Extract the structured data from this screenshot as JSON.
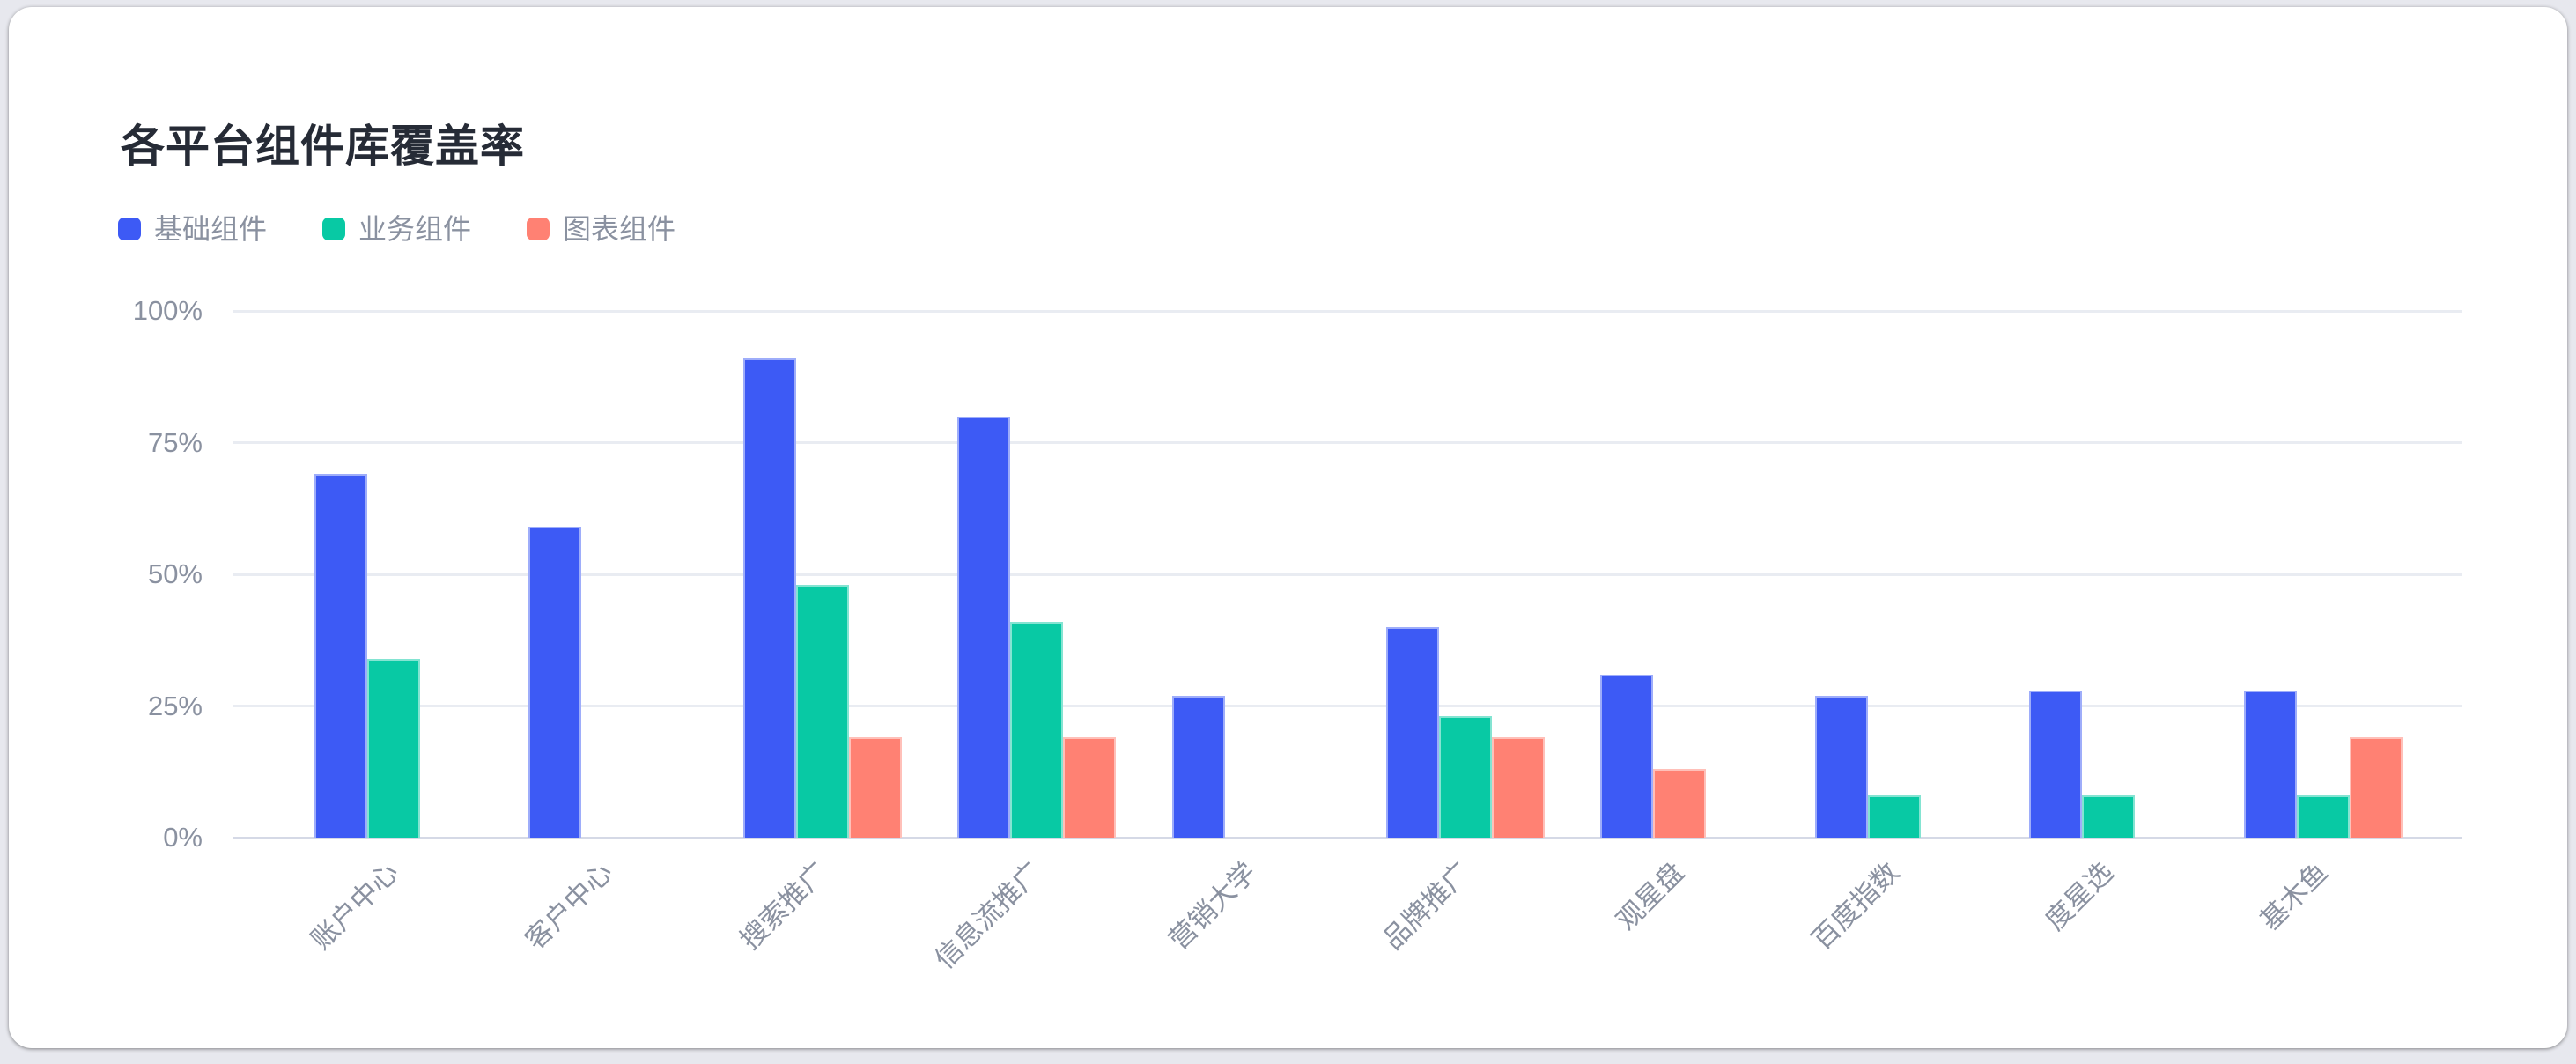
{
  "chart_data": {
    "type": "bar",
    "title": "各平台组件库覆盖率",
    "categories": [
      "账户中心",
      "客户中心",
      "搜索推广",
      "信息流推广",
      "营销大学",
      "品牌推广",
      "观星盘",
      "百度指数",
      "度星选",
      "基木鱼"
    ],
    "series": [
      {
        "name": "基础组件",
        "color": "#3d5af5",
        "values": [
          69,
          59,
          91,
          80,
          27,
          40,
          31,
          27,
          28,
          28
        ]
      },
      {
        "name": "业务组件",
        "color": "#08c9a4",
        "values": [
          34,
          null,
          48,
          41,
          null,
          23,
          null,
          8,
          8,
          8
        ]
      },
      {
        "name": "图表组件",
        "color": "#ff8173",
        "values": [
          null,
          null,
          19,
          19,
          null,
          19,
          13,
          null,
          null,
          19
        ]
      }
    ],
    "ylabel": "",
    "xlabel": "",
    "ylim": [
      0,
      100
    ],
    "y_tick_labels": [
      "0%",
      "25%",
      "50%",
      "75%",
      "100%"
    ],
    "grid": true,
    "legend_position": "top-left",
    "axis_style": {
      "label_color": "#8a91a0",
      "grid_color": "#e9ecf2",
      "axis_line_color": "#d5d9e6"
    }
  }
}
